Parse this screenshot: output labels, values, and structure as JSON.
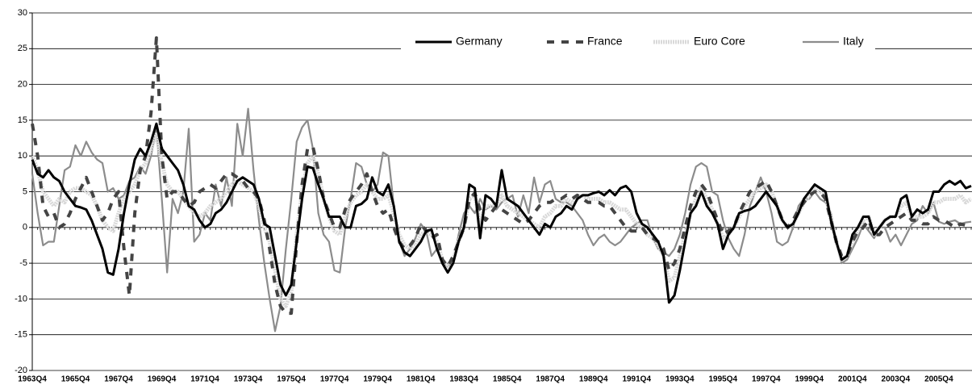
{
  "chart_data": {
    "type": "line",
    "categories": [
      "1963Q4",
      null,
      null,
      null,
      null,
      null,
      null,
      null,
      "1965Q4",
      null,
      null,
      null,
      null,
      null,
      null,
      null,
      "1967Q4",
      null,
      null,
      null,
      null,
      null,
      null,
      null,
      "1969Q4",
      null,
      null,
      null,
      null,
      null,
      null,
      null,
      "1971Q4",
      null,
      null,
      null,
      null,
      null,
      null,
      null,
      "1973Q4",
      null,
      null,
      null,
      null,
      null,
      null,
      null,
      "1975Q4",
      null,
      null,
      null,
      null,
      null,
      null,
      null,
      "1977Q4",
      null,
      null,
      null,
      null,
      null,
      null,
      null,
      "1979Q4",
      null,
      null,
      null,
      null,
      null,
      null,
      null,
      "1981Q4",
      null,
      null,
      null,
      null,
      null,
      null,
      null,
      "1983Q4",
      null,
      null,
      null,
      null,
      null,
      null,
      null,
      "1985Q4",
      null,
      null,
      null,
      null,
      null,
      null,
      null,
      "1987Q4",
      null,
      null,
      null,
      null,
      null,
      null,
      null,
      "1989Q4",
      null,
      null,
      null,
      null,
      null,
      null,
      null,
      "1991Q4",
      null,
      null,
      null,
      null,
      null,
      null,
      null,
      "1993Q4",
      null,
      null,
      null,
      null,
      null,
      null,
      null,
      "1995Q4",
      null,
      null,
      null,
      null,
      null,
      null,
      null,
      "1997Q4",
      null,
      null,
      null,
      null,
      null,
      null,
      null,
      "1999Q4",
      null,
      null,
      null,
      null,
      null,
      null,
      null,
      "2001Q4",
      null,
      null,
      null,
      null,
      null,
      null,
      null,
      "2003Q4",
      null,
      null,
      null,
      null,
      null,
      null,
      null,
      "2005Q4",
      null,
      null,
      null,
      null,
      null,
      null
    ],
    "series": [
      {
        "name": "Germany",
        "color": "#000000",
        "values": [
          9.5,
          7.5,
          7,
          8,
          7,
          6.5,
          5,
          4,
          3,
          2.8,
          2.5,
          1,
          -1,
          -3,
          -6.3,
          -6.6,
          -3,
          2,
          6,
          9.5,
          11,
          10,
          12,
          14.5,
          11,
          10,
          9,
          8,
          6,
          3,
          2.5,
          1,
          0,
          0.5,
          2,
          2.5,
          3.5,
          5,
          6.5,
          7,
          6.5,
          6,
          4,
          0.5,
          0,
          -4,
          -8,
          -9.5,
          -8,
          -2,
          4,
          8.5,
          8.3,
          6,
          4,
          1.5,
          1.5,
          1.5,
          0,
          0,
          3,
          3.3,
          4,
          7,
          5,
          4.5,
          6,
          3,
          -2,
          -3.5,
          -4,
          -3,
          -2,
          -0.5,
          -0.3,
          -3,
          -5,
          -6.3,
          -5,
          -2,
          0,
          6,
          5.5,
          -1.5,
          4.5,
          4,
          3,
          8,
          4,
          3.5,
          3,
          2,
          1,
          0,
          -1,
          0.5,
          0,
          1.5,
          2,
          3,
          2.5,
          4,
          4.5,
          4.5,
          4.8,
          5,
          4.5,
          5.2,
          4.5,
          5.5,
          5.8,
          5,
          2,
          0.5,
          0,
          -1,
          -2,
          -4,
          -10.5,
          -9.5,
          -6,
          -2,
          2,
          3,
          5,
          3,
          2,
          0.5,
          -3,
          -1,
          0,
          2,
          2.3,
          2.5,
          3,
          4,
          5,
          4,
          3,
          1,
          0,
          0.5,
          2,
          4,
          5,
          6,
          5.5,
          5,
          1,
          -2,
          -4.5,
          -4,
          -1,
          0,
          1.5,
          1.5,
          -1,
          0,
          1,
          1.5,
          1.5,
          4,
          4.5,
          1.5,
          2.5,
          2,
          2.5,
          5,
          5,
          6,
          6.5,
          6,
          6.5,
          5.5,
          5.8
        ]
      },
      {
        "name": "France",
        "color": "#444444",
        "values": [
          14.5,
          10,
          3,
          1.5,
          2,
          0,
          0.5,
          2,
          4,
          5.5,
          7,
          5,
          3,
          1,
          2,
          4,
          5,
          -3,
          -9.5,
          2,
          8,
          10,
          16,
          26.5,
          10,
          4,
          5,
          5,
          4,
          3,
          3.5,
          5,
          5.5,
          6,
          5.5,
          6.5,
          7.5,
          7.5,
          7,
          6.5,
          5.5,
          5,
          4,
          1,
          -3,
          -8,
          -11,
          -12,
          -12,
          -2,
          6,
          11,
          11.3,
          8,
          4,
          2,
          0,
          0,
          2.5,
          4,
          5,
          6,
          7.5,
          5,
          3,
          2,
          2.5,
          0,
          -2,
          -3,
          -2.5,
          -1.5,
          0.5,
          -0.5,
          -1.5,
          -1,
          -4.5,
          -5.5,
          -4,
          -2,
          0,
          4,
          4.8,
          2.5,
          1,
          2,
          3,
          2.5,
          2,
          1.5,
          1,
          0.5,
          1,
          2,
          3,
          3.5,
          3.5,
          4,
          4,
          4.5,
          4,
          4.5,
          4,
          3.5,
          3.5,
          3.5,
          3,
          3,
          2,
          1,
          0,
          -0.5,
          -0.5,
          0,
          -1,
          -1.5,
          -2,
          -3,
          -6,
          -5,
          -3,
          0,
          3,
          5,
          6,
          5,
          3,
          1,
          -1,
          -0.5,
          0,
          2,
          3.5,
          5,
          5.5,
          6,
          6.5,
          5,
          3,
          1,
          0,
          1,
          2.5,
          3.5,
          4.5,
          5,
          5,
          4,
          1,
          -2,
          -4,
          -4,
          -2,
          -0.5,
          0,
          1,
          -1,
          -1,
          0,
          0.5,
          1,
          1.5,
          2,
          1,
          1,
          0.5,
          0.5,
          1.5,
          1,
          1,
          0.5,
          0,
          0.5,
          0.3,
          0.5
        ]
      },
      {
        "name": "Euro Core",
        "color": "#d9d9d9",
        "values": [
          10,
          8,
          5,
          4,
          3,
          4,
          3.5,
          5,
          5.5,
          5.5,
          5,
          4.5,
          3,
          1,
          0,
          -0.5,
          2,
          4,
          5,
          6,
          8,
          9,
          11,
          13,
          9,
          6,
          5,
          5,
          4,
          3,
          2,
          1.5,
          2,
          3,
          3.5,
          4,
          5,
          6,
          6.5,
          6,
          5.5,
          5,
          3,
          0,
          -2,
          -6,
          -10,
          -11,
          -9,
          -1,
          5,
          9,
          10,
          7.5,
          4,
          1.5,
          -0.5,
          -1,
          1.5,
          3.5,
          4.5,
          5,
          6,
          5,
          4,
          4,
          4.5,
          2,
          -1,
          -2.5,
          -3,
          -2.5,
          -1,
          -0.5,
          -1,
          -2,
          -4.5,
          -5.5,
          -4.5,
          -2,
          0,
          4,
          4.5,
          0.5,
          3,
          3,
          3,
          4.5,
          3,
          2.5,
          2,
          1.5,
          1,
          0.5,
          0,
          1.5,
          2,
          3,
          3,
          4,
          3.5,
          4,
          4.5,
          4,
          4,
          4,
          3.5,
          3.5,
          3,
          2.5,
          2.5,
          1.5,
          0.5,
          0,
          -1,
          -1.5,
          -2.5,
          -4,
          -7.5,
          -7,
          -4,
          -1,
          2,
          4,
          5.5,
          4,
          2.5,
          0.5,
          -1.5,
          -1,
          0,
          1.5,
          3,
          4,
          5,
          5.5,
          6,
          5,
          3,
          1,
          0,
          0.5,
          2,
          3.5,
          4.5,
          5.5,
          5,
          4.5,
          1,
          -2,
          -4.5,
          -4,
          -2,
          -0.5,
          1,
          1.5,
          -1,
          0,
          1,
          1.5,
          1.5,
          3,
          3.5,
          1.5,
          1.5,
          1.5,
          2,
          3.5,
          3.5,
          4,
          4,
          4,
          4.5,
          3.5,
          4
        ]
      },
      {
        "name": "Italy",
        "color": "#8c8c8c",
        "values": [
          7.5,
          2,
          -2.5,
          -2,
          -2,
          3,
          8,
          8.5,
          11.5,
          10,
          12,
          10.5,
          9.5,
          9,
          5,
          5.5,
          4,
          4.5,
          6.5,
          7,
          8.5,
          7.5,
          10,
          14,
          4,
          -6.3,
          4,
          2,
          5,
          13.8,
          -2,
          -1,
          2,
          1,
          6,
          3,
          7,
          3,
          14.5,
          10,
          16.6,
          8,
          1,
          -5,
          -10,
          -14.5,
          -11,
          -3,
          4,
          12,
          14,
          15,
          11,
          2,
          -1,
          -2,
          -6,
          -6.3,
          0,
          4,
          9,
          8.5,
          6,
          5,
          6,
          10.5,
          10,
          3,
          -2,
          -4,
          -3,
          -1.5,
          0.5,
          -0.5,
          -4,
          -3,
          -5,
          -5.5,
          -5,
          -1,
          2,
          3,
          2,
          4,
          2.5,
          3,
          2.5,
          3.5,
          4,
          4.5,
          1.5,
          4.5,
          2,
          7,
          3.5,
          6,
          6.5,
          4,
          3.5,
          3.5,
          3,
          2,
          1,
          -1,
          -2.5,
          -1.5,
          -1,
          -2,
          -2.5,
          -2,
          -1,
          0,
          0.5,
          1,
          1,
          -1.5,
          -3,
          -3.5,
          -4,
          -3,
          -1,
          2,
          6,
          8.5,
          9,
          8.5,
          5,
          4.5,
          1,
          -1.5,
          -3,
          -4,
          -1,
          3,
          5,
          7,
          5,
          2,
          -2,
          -2.5,
          -2,
          0,
          3,
          4,
          4,
          5,
          4,
          3.5,
          2,
          -2,
          -5,
          -4.5,
          -3,
          -1.5,
          0.5,
          -0.5,
          -1.5,
          0,
          0,
          -2,
          -1,
          -2.5,
          -1,
          0.5,
          1,
          3,
          2,
          3.5,
          0.8,
          0.5,
          0.8,
          1,
          0.5,
          0.7,
          0.8
        ]
      }
    ],
    "ylim": [
      -20,
      30
    ],
    "yticks": [
      -20,
      -15,
      -10,
      -5,
      0,
      5,
      10,
      15,
      20,
      25,
      30
    ],
    "grid": true,
    "legend": "top"
  }
}
